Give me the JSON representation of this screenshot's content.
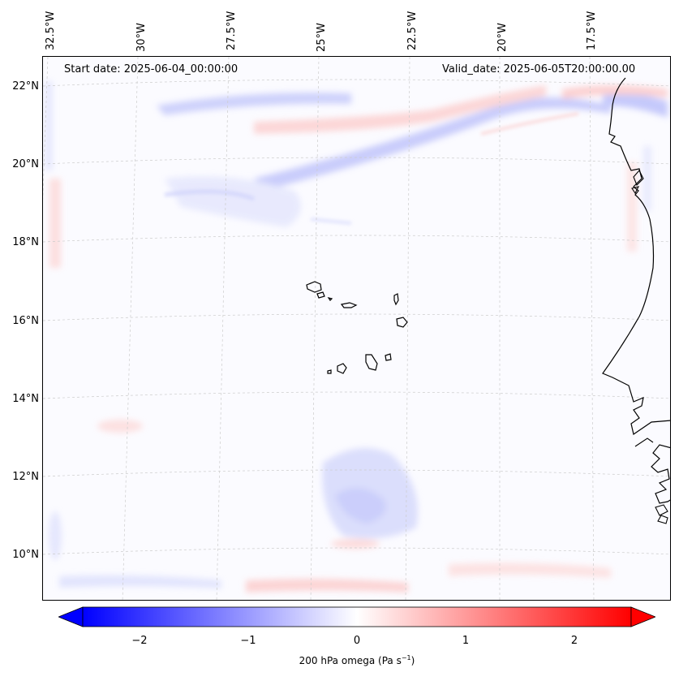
{
  "map": {
    "title_start": "Start date: 2025-06-04_00:00:00",
    "title_valid": "Valid_date: 2025-06-05T20:00:00.00",
    "lon_labels": [
      "32.5°W",
      "30°W",
      "27.5°W",
      "25°W",
      "22.5°W",
      "20°W",
      "17.5°W"
    ],
    "lat_labels": [
      "22°N",
      "20°N",
      "18°N",
      "16°N",
      "14°N",
      "12°N",
      "10°N"
    ],
    "variable": "200 hPa omega",
    "colors": {
      "negative": "#0000ff",
      "neutral": "#ffffff",
      "positive": "#ff0000",
      "coast": "#000000",
      "grid": "#bbbbbb"
    }
  },
  "colorbar": {
    "ticks": [
      "−2",
      "−1",
      "0",
      "1",
      "2"
    ],
    "tick_values": [
      -2,
      -1,
      0,
      1,
      2
    ],
    "range": [
      -2.5,
      2.5
    ],
    "label_text": "200 hPa omega (Pa s",
    "label_sup": "−1",
    "label_close": ")"
  }
}
